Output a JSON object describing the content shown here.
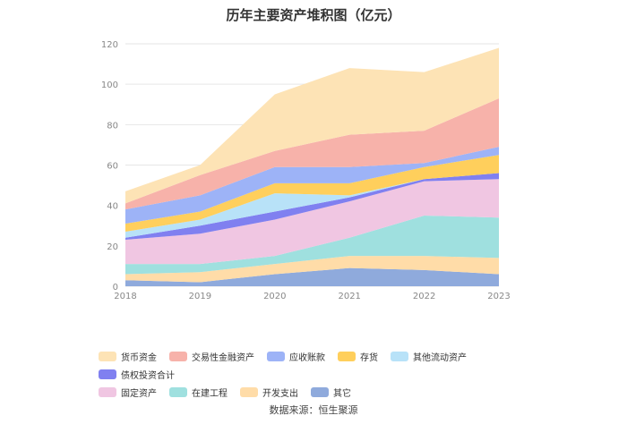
{
  "chart_data": {
    "type": "area",
    "stacked": true,
    "title": "历年主要资产堆积图（亿元）",
    "x": [
      "2018",
      "2019",
      "2020",
      "2021",
      "2022",
      "2023"
    ],
    "ylim": [
      0,
      120
    ],
    "yticks": [
      0,
      20,
      40,
      60,
      80,
      100,
      120
    ],
    "grid": true,
    "legend_position": "bottom",
    "series": [
      {
        "name": "其它",
        "color": "#8faadc",
        "values": [
          3,
          2,
          6,
          9,
          8,
          6
        ]
      },
      {
        "name": "开发支出",
        "color": "#ffdca8",
        "values": [
          3,
          5,
          5,
          6,
          7,
          8
        ]
      },
      {
        "name": "在建工程",
        "color": "#9fe0df",
        "values": [
          5,
          4,
          4,
          9,
          20,
          20
        ]
      },
      {
        "name": "固定资产",
        "color": "#f0c6e2",
        "values": [
          12,
          15,
          18,
          18,
          17,
          19
        ]
      },
      {
        "name": "债权投资合计",
        "color": "#8080f0",
        "values": [
          1,
          4,
          4,
          2,
          1,
          3
        ]
      },
      {
        "name": "其他流动资产",
        "color": "#b8e2f8",
        "values": [
          3,
          3,
          9,
          1,
          0,
          0
        ]
      },
      {
        "name": "存货",
        "color": "#ffcf5c",
        "values": [
          4,
          4,
          5,
          6,
          6,
          9
        ]
      },
      {
        "name": "应收账款",
        "color": "#9db3f7",
        "values": [
          7,
          8,
          8,
          8,
          2,
          4
        ]
      },
      {
        "name": "交易性金融资产",
        "color": "#f7b2aa",
        "values": [
          3,
          10,
          8,
          16,
          16,
          24
        ]
      },
      {
        "name": "货币资金",
        "color": "#fde3b5",
        "values": [
          6,
          5,
          28,
          33,
          29,
          25
        ]
      }
    ]
  },
  "legend": {
    "row1": [
      {
        "name": "货币资金",
        "color": "#fde3b5"
      },
      {
        "name": "交易性金融资产",
        "color": "#f7b2aa"
      },
      {
        "name": "应收账款",
        "color": "#9db3f7"
      },
      {
        "name": "存货",
        "color": "#ffcf5c"
      },
      {
        "name": "其他流动资产",
        "color": "#b8e2f8"
      },
      {
        "name": "债权投资合计",
        "color": "#8080f0"
      }
    ],
    "row2": [
      {
        "name": "固定资产",
        "color": "#f0c6e2"
      },
      {
        "name": "在建工程",
        "color": "#9fe0df"
      },
      {
        "name": "开发支出",
        "color": "#ffdca8"
      },
      {
        "name": "其它",
        "color": "#8faadc"
      }
    ]
  },
  "source": "数据来源：恒生聚源"
}
